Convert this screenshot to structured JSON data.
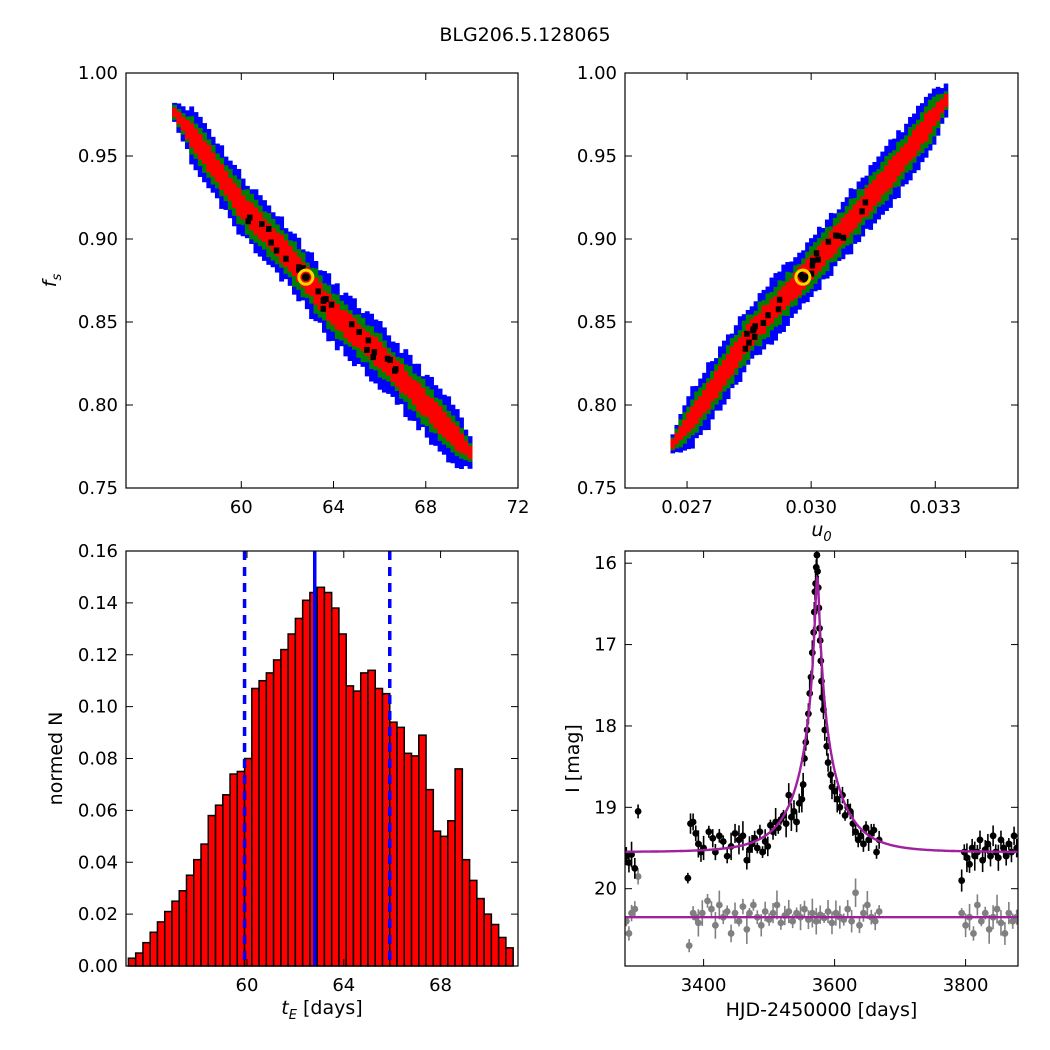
{
  "figure": {
    "title": "BLG206.5.128065"
  },
  "chart_data": [
    {
      "id": "fs_vs_tE",
      "type": "heatmap",
      "xlim": [
        55,
        72
      ],
      "ylim": [
        0.75,
        1.0
      ],
      "xticks": [
        60,
        64,
        68,
        72
      ],
      "yticks": [
        0.75,
        0.8,
        0.85,
        0.9,
        0.95,
        1.0
      ],
      "x_label": "",
      "y_label": "f_s",
      "correlation": "negative",
      "ridge": [
        [
          57.0,
          0.978
        ],
        [
          58.5,
          0.95
        ],
        [
          60.0,
          0.92
        ],
        [
          62.0,
          0.89
        ],
        [
          64.0,
          0.855
        ],
        [
          66.0,
          0.83
        ],
        [
          68.0,
          0.8
        ],
        [
          70.0,
          0.77
        ]
      ],
      "best_fit": [
        62.8,
        0.877
      ],
      "levels": [
        "blue",
        "green",
        "red",
        "black"
      ]
    },
    {
      "id": "fs_vs_u0",
      "type": "heatmap",
      "xlim": [
        0.0255,
        0.035
      ],
      "ylim": [
        0.75,
        1.0
      ],
      "xticks": [
        0.027,
        0.03,
        0.033
      ],
      "yticks": [
        0.75,
        0.8,
        0.85,
        0.9,
        0.95,
        1.0
      ],
      "x_label": "u_0",
      "y_label": "",
      "correlation": "positive",
      "ridge": [
        [
          0.0266,
          0.775
        ],
        [
          0.0275,
          0.805
        ],
        [
          0.0285,
          0.842
        ],
        [
          0.0298,
          0.877
        ],
        [
          0.031,
          0.912
        ],
        [
          0.0322,
          0.948
        ],
        [
          0.0333,
          0.985
        ]
      ],
      "best_fit": [
        0.0298,
        0.877
      ],
      "levels": [
        "blue",
        "green",
        "red",
        "black"
      ]
    },
    {
      "id": "tE_histogram",
      "type": "bar",
      "x": [
        55.25,
        55.55,
        55.85,
        56.15,
        56.45,
        56.75,
        57.05,
        57.35,
        57.65,
        57.95,
        58.25,
        58.55,
        58.85,
        59.15,
        59.45,
        59.75,
        60.05,
        60.35,
        60.65,
        60.95,
        61.25,
        61.55,
        61.85,
        62.15,
        62.45,
        62.75,
        63.05,
        63.35,
        63.65,
        63.95,
        64.25,
        64.55,
        64.85,
        65.15,
        65.45,
        65.75,
        66.05,
        66.35,
        66.65,
        66.95,
        67.25,
        67.55,
        67.85,
        68.15,
        68.45,
        68.75,
        69.05,
        69.35,
        69.65,
        69.95,
        70.25,
        70.55,
        70.85
      ],
      "values": [
        0.003,
        0.005,
        0.009,
        0.013,
        0.017,
        0.021,
        0.025,
        0.029,
        0.035,
        0.041,
        0.047,
        0.058,
        0.062,
        0.066,
        0.074,
        0.075,
        0.08,
        0.107,
        0.11,
        0.113,
        0.118,
        0.122,
        0.128,
        0.134,
        0.141,
        0.144,
        0.146,
        0.144,
        0.138,
        0.128,
        0.108,
        0.106,
        0.113,
        0.114,
        0.107,
        0.105,
        0.094,
        0.092,
        0.082,
        0.081,
        0.089,
        0.068,
        0.052,
        0.05,
        0.056,
        0.076,
        0.041,
        0.033,
        0.026,
        0.02,
        0.016,
        0.011,
        0.007
      ],
      "xlim": [
        55,
        71.2
      ],
      "ylim": [
        0.0,
        0.16
      ],
      "xticks": [
        60,
        64,
        68
      ],
      "yticks": [
        0.0,
        0.02,
        0.04,
        0.06,
        0.08,
        0.1,
        0.12,
        0.14,
        0.16
      ],
      "x_label": "t_E [days]",
      "y_label": "normed N",
      "median": 62.8,
      "interval": [
        59.9,
        65.9
      ],
      "bar_color": "#ff0000"
    },
    {
      "id": "light_curve",
      "type": "scatter",
      "xlim": [
        3280,
        3880
      ],
      "ylim_inverted": [
        20.95,
        15.85
      ],
      "xticks": [
        3400,
        3600,
        3800
      ],
      "yticks": [
        16,
        17,
        18,
        19,
        20
      ],
      "x_label": "HJD-2450000 [days]",
      "y_label": "I [mag]",
      "series": [
        {
          "color": "#000000",
          "points": [
            [
              3282,
              19.6
            ],
            [
              3286,
              19.68
            ],
            [
              3290,
              19.58
            ],
            [
              3295,
              19.75
            ],
            [
              3300,
              19.05
            ],
            [
              3376,
              19.87
            ],
            [
              3380,
              19.2
            ],
            [
              3384,
              19.18
            ],
            [
              3388,
              19.32
            ],
            [
              3392,
              19.45
            ],
            [
              3396,
              19.55
            ],
            [
              3400,
              19.5
            ],
            [
              3408,
              19.3
            ],
            [
              3414,
              19.38
            ],
            [
              3418,
              19.55
            ],
            [
              3424,
              19.35
            ],
            [
              3430,
              19.42
            ],
            [
              3436,
              19.6
            ],
            [
              3442,
              19.48
            ],
            [
              3448,
              19.32
            ],
            [
              3454,
              19.4
            ],
            [
              3460,
              19.35
            ],
            [
              3466,
              19.65
            ],
            [
              3470,
              19.52
            ],
            [
              3474,
              19.45
            ],
            [
              3478,
              19.38
            ],
            [
              3482,
              19.5
            ],
            [
              3486,
              19.3
            ],
            [
              3490,
              19.55
            ],
            [
              3494,
              19.42
            ],
            [
              3498,
              19.48
            ],
            [
              3502,
              19.22
            ],
            [
              3506,
              19.3
            ],
            [
              3510,
              19.18
            ],
            [
              3514,
              19.25
            ],
            [
              3518,
              19.15
            ],
            [
              3522,
              19.1
            ],
            [
              3526,
              19.2
            ],
            [
              3530,
              18.85
            ],
            [
              3534,
              19.12
            ],
            [
              3538,
              19.05
            ],
            [
              3542,
              19.18
            ],
            [
              3546,
              18.95
            ],
            [
              3550,
              18.9
            ],
            [
              3552,
              18.72
            ],
            [
              3554,
              18.4
            ],
            [
              3556,
              18.2
            ],
            [
              3558,
              18.05
            ],
            [
              3560,
              17.85
            ],
            [
              3562,
              17.6
            ],
            [
              3564,
              17.4
            ],
            [
              3566,
              17.1
            ],
            [
              3568,
              16.85
            ],
            [
              3569,
              16.6
            ],
            [
              3570,
              16.35
            ],
            [
              3571,
              16.25
            ],
            [
              3572,
              16.05
            ],
            [
              3573,
              15.9
            ],
            [
              3574,
              16.1
            ],
            [
              3575,
              16.3
            ],
            [
              3576,
              16.55
            ],
            [
              3577,
              16.8
            ],
            [
              3578,
              16.95
            ],
            [
              3579,
              17.2
            ],
            [
              3580,
              17.45
            ],
            [
              3581,
              17.65
            ],
            [
              3583,
              17.8
            ],
            [
              3585,
              18.05
            ],
            [
              3588,
              18.25
            ],
            [
              3590,
              18.45
            ],
            [
              3594,
              18.6
            ],
            [
              3596,
              18.75
            ],
            [
              3600,
              18.8
            ],
            [
              3604,
              18.9
            ],
            [
              3608,
              19.0
            ],
            [
              3612,
              18.85
            ],
            [
              3616,
              19.1
            ],
            [
              3620,
              19.0
            ],
            [
              3624,
              19.05
            ],
            [
              3628,
              19.2
            ],
            [
              3632,
              19.3
            ],
            [
              3636,
              19.4
            ],
            [
              3640,
              19.35
            ],
            [
              3644,
              19.45
            ],
            [
              3648,
              19.25
            ],
            [
              3652,
              19.4
            ],
            [
              3656,
              19.32
            ],
            [
              3660,
              19.28
            ],
            [
              3664,
              19.55
            ],
            [
              3668,
              19.4
            ],
            [
              3794,
              19.9
            ],
            [
              3798,
              19.55
            ],
            [
              3802,
              19.62
            ],
            [
              3806,
              19.7
            ],
            [
              3810,
              19.5
            ],
            [
              3814,
              19.6
            ],
            [
              3818,
              19.55
            ],
            [
              3822,
              19.4
            ],
            [
              3826,
              19.65
            ],
            [
              3830,
              19.52
            ],
            [
              3834,
              19.45
            ],
            [
              3838,
              19.6
            ],
            [
              3842,
              19.35
            ],
            [
              3846,
              19.55
            ],
            [
              3850,
              19.62
            ],
            [
              3854,
              19.4
            ],
            [
              3858,
              19.5
            ],
            [
              3862,
              19.6
            ],
            [
              3866,
              19.45
            ],
            [
              3870,
              19.55
            ],
            [
              3874,
              19.35
            ],
            [
              3878,
              19.5
            ]
          ]
        },
        {
          "color": "#808080",
          "points": [
            [
              3282,
              20.4
            ],
            [
              3286,
              20.55
            ],
            [
              3290,
              20.3
            ],
            [
              3295,
              20.25
            ],
            [
              3300,
              19.85
            ],
            [
              3378,
              20.7
            ],
            [
              3384,
              20.3
            ],
            [
              3388,
              20.35
            ],
            [
              3392,
              20.42
            ],
            [
              3398,
              20.3
            ],
            [
              3406,
              20.15
            ],
            [
              3412,
              20.25
            ],
            [
              3418,
              20.45
            ],
            [
              3424,
              20.2
            ],
            [
              3430,
              20.35
            ],
            [
              3436,
              20.28
            ],
            [
              3442,
              20.55
            ],
            [
              3448,
              20.3
            ],
            [
              3454,
              20.4
            ],
            [
              3460,
              20.22
            ],
            [
              3466,
              20.5
            ],
            [
              3470,
              20.3
            ],
            [
              3476,
              20.2
            ],
            [
              3482,
              20.35
            ],
            [
              3488,
              20.45
            ],
            [
              3494,
              20.28
            ],
            [
              3500,
              20.38
            ],
            [
              3506,
              20.3
            ],
            [
              3512,
              20.2
            ],
            [
              3518,
              20.42
            ],
            [
              3524,
              20.33
            ],
            [
              3530,
              20.28
            ],
            [
              3536,
              20.4
            ],
            [
              3542,
              20.3
            ],
            [
              3548,
              20.35
            ],
            [
              3554,
              20.25
            ],
            [
              3560,
              20.38
            ],
            [
              3566,
              20.3
            ],
            [
              3572,
              20.4
            ],
            [
              3578,
              20.32
            ],
            [
              3584,
              20.36
            ],
            [
              3590,
              20.28
            ],
            [
              3596,
              20.42
            ],
            [
              3602,
              20.3
            ],
            [
              3608,
              20.35
            ],
            [
              3614,
              20.38
            ],
            [
              3620,
              20.25
            ],
            [
              3626,
              20.4
            ],
            [
              3632,
              20.05
            ],
            [
              3638,
              20.45
            ],
            [
              3644,
              20.3
            ],
            [
              3650,
              20.2
            ],
            [
              3656,
              20.35
            ],
            [
              3662,
              20.4
            ],
            [
              3668,
              20.28
            ],
            [
              3794,
              20.3
            ],
            [
              3800,
              20.45
            ],
            [
              3806,
              20.35
            ],
            [
              3812,
              20.55
            ],
            [
              3818,
              20.2
            ],
            [
              3824,
              20.4
            ],
            [
              3830,
              20.3
            ],
            [
              3836,
              20.5
            ],
            [
              3842,
              20.35
            ],
            [
              3848,
              20.25
            ],
            [
              3854,
              20.42
            ],
            [
              3860,
              20.55
            ],
            [
              3866,
              20.3
            ],
            [
              3872,
              20.4
            ],
            [
              3878,
              20.35
            ]
          ]
        }
      ],
      "model_curves": [
        {
          "color": "#a020a0",
          "baseline": 19.55,
          "peak": 16.18,
          "t0": 3573.5
        },
        {
          "color": "#a020a0",
          "baseline": 20.35
        }
      ]
    }
  ]
}
